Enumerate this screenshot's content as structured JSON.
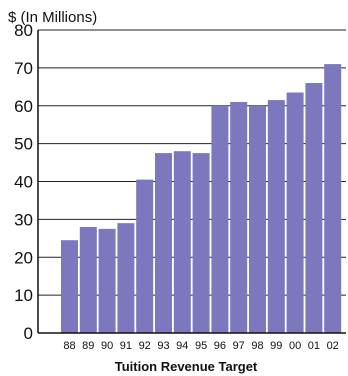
{
  "chart_data": {
    "type": "bar",
    "title": "Tuition Revenue Target",
    "ylabel": "$ (In Millions)",
    "xlabel": "",
    "categories": [
      "88",
      "89",
      "90",
      "91",
      "92",
      "93",
      "94",
      "95",
      "96",
      "97",
      "98",
      "99",
      "00",
      "01",
      "02"
    ],
    "values": [
      24.5,
      28,
      27.5,
      29,
      40.5,
      47.5,
      48,
      47.5,
      60,
      61,
      60,
      61.5,
      63.5,
      66,
      71
    ],
    "ylim": [
      0,
      80
    ],
    "yticks": [
      0,
      10,
      20,
      30,
      40,
      50,
      60,
      70,
      80
    ],
    "grid": true,
    "bar_color": "#7d78bd",
    "grid_color": "#222222"
  }
}
